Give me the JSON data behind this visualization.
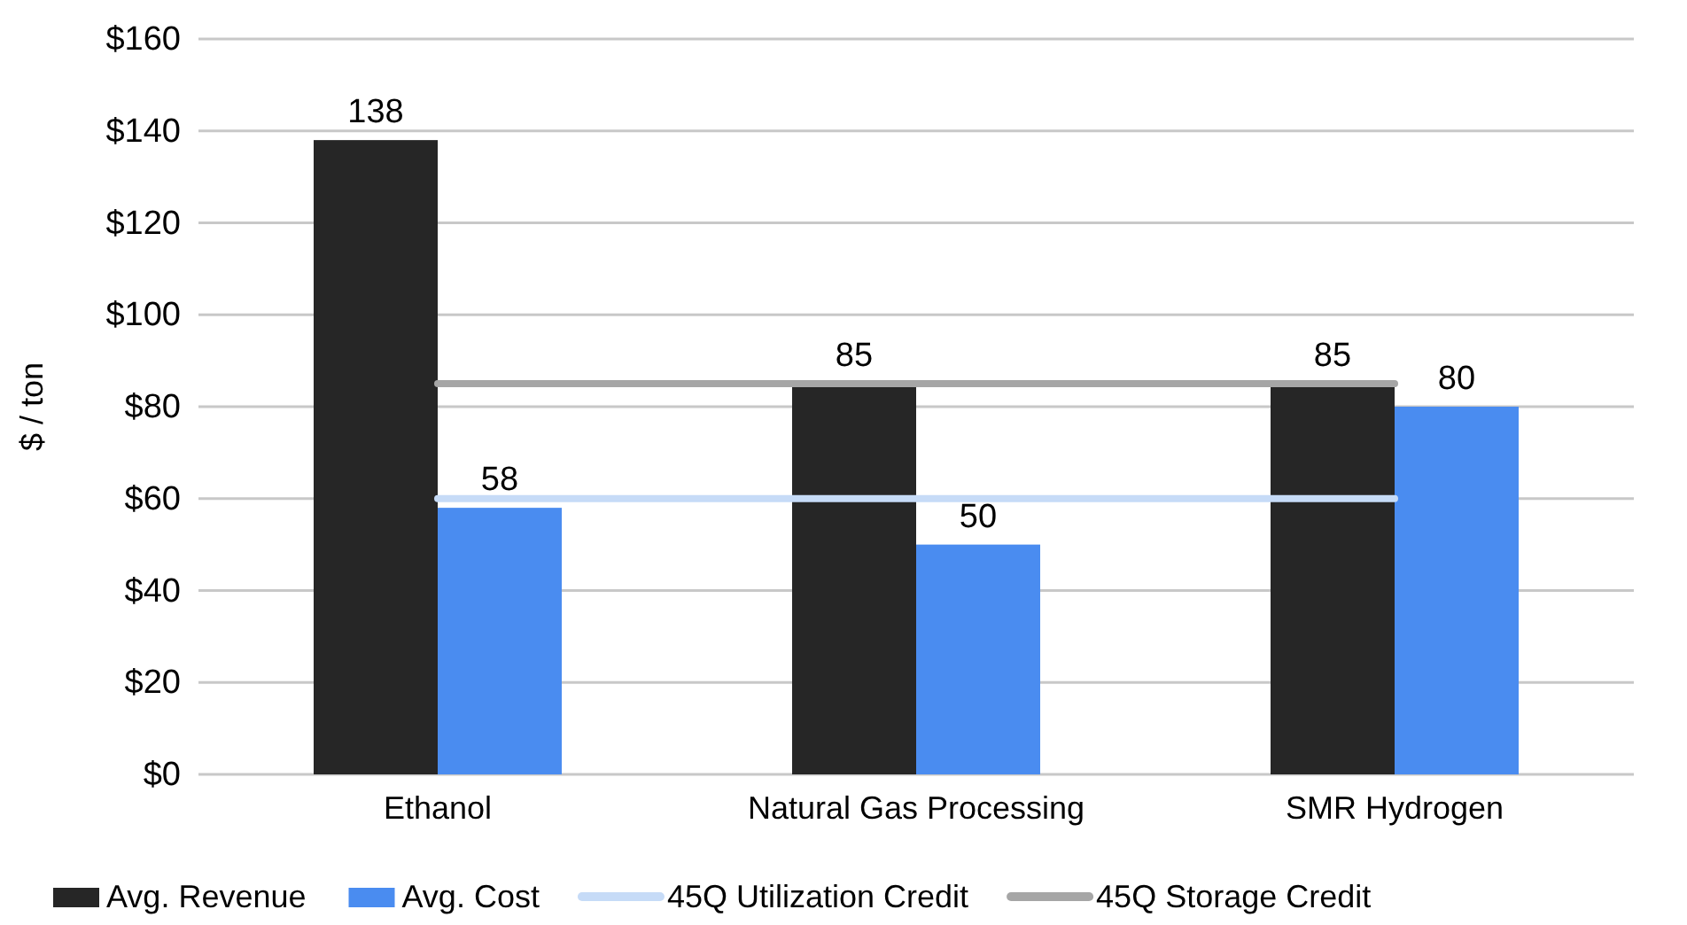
{
  "chart_data": {
    "type": "bar",
    "ylabel": "$ / ton",
    "categories": [
      "Ethanol",
      "Natural Gas Processing",
      "SMR Hydrogen"
    ],
    "series": [
      {
        "name": "Avg. Revenue",
        "color": "#262626",
        "values": [
          138,
          85,
          85
        ],
        "value_labels": [
          "138",
          "85",
          "85"
        ]
      },
      {
        "name": "Avg. Cost",
        "color": "#4a8cf0",
        "values": [
          58,
          50,
          80
        ],
        "value_labels": [
          "58",
          "50",
          "80"
        ]
      },
      {
        "name": "45Q Utilization Credit",
        "type": "line",
        "color": "#c6dbf7",
        "values": [
          60,
          60,
          60
        ]
      },
      {
        "name": "45Q Storage Credit",
        "type": "line",
        "color": "#a6a6a6",
        "values": [
          85,
          85,
          85
        ]
      }
    ],
    "ylim": [
      0,
      160
    ],
    "yticks": [
      {
        "value": 0,
        "label": "$0"
      },
      {
        "value": 20,
        "label": "$20"
      },
      {
        "value": 40,
        "label": "$40"
      },
      {
        "value": 60,
        "label": "$60"
      },
      {
        "value": 80,
        "label": "$80"
      },
      {
        "value": 100,
        "label": "$100"
      },
      {
        "value": 120,
        "label": "$120"
      },
      {
        "value": 140,
        "label": "$140"
      },
      {
        "value": 160,
        "label": "$160"
      }
    ],
    "grid": "y",
    "legend": "bottom",
    "marker": "none",
    "line_style": "solid"
  }
}
